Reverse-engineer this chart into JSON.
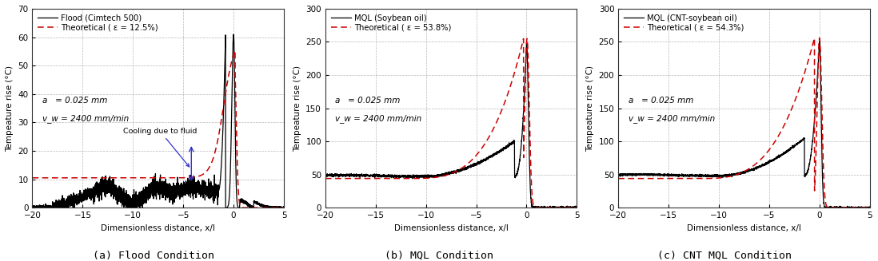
{
  "fig_width": 10.98,
  "fig_height": 3.27,
  "xlim": [
    -20,
    5
  ],
  "xticks": [
    -20,
    -15,
    -10,
    -5,
    0,
    5
  ],
  "xlabel": "Dimensionless distance, x/l",
  "ylabel": "Tempeature rise (°C)",
  "subplot_a": {
    "ylim": [
      0,
      70
    ],
    "yticks": [
      0,
      10,
      20,
      30,
      40,
      50,
      60,
      70
    ],
    "legend_line1": "Flood (Cimtech 500)",
    "legend_line2": "Theoretical ( ε = 12.5%)",
    "param_a": "a   = 0.025 mm",
    "param_v": "v_w = 2400 mm/min",
    "annotation": "Cooling due to fluid",
    "caption": "(a) Flood Condition"
  },
  "subplot_b": {
    "ylim": [
      0,
      300
    ],
    "yticks": [
      0,
      50,
      100,
      150,
      200,
      250,
      300
    ],
    "legend_line1": "MQL (Soybean oil)",
    "legend_line2": "Theoretical ( ε = 53.8%)",
    "param_a": "a   = 0.025 mm",
    "param_v": "v_w = 2400 mm/min",
    "caption": "(b) MQL Condition"
  },
  "subplot_c": {
    "ylim": [
      0,
      300
    ],
    "yticks": [
      0,
      50,
      100,
      150,
      200,
      250,
      300
    ],
    "legend_line1": "MQL (CNT-soybean oil)",
    "legend_line2": "Theoretical ( ε = 54.3%)",
    "param_a": "a   = 0.025 mm",
    "param_v": "v_w = 2400 mm/min",
    "caption": "(c) CNT MQL Condition"
  },
  "color_black": "#000000",
  "color_red": "#cc0000",
  "color_blue": "#3333cc",
  "bg_color": "#ffffff",
  "grid_color": "#999999",
  "font_size_label": 7.5,
  "font_size_legend": 7.2,
  "font_size_caption": 9.5,
  "font_size_param": 7.5,
  "font_size_tick": 7.5
}
